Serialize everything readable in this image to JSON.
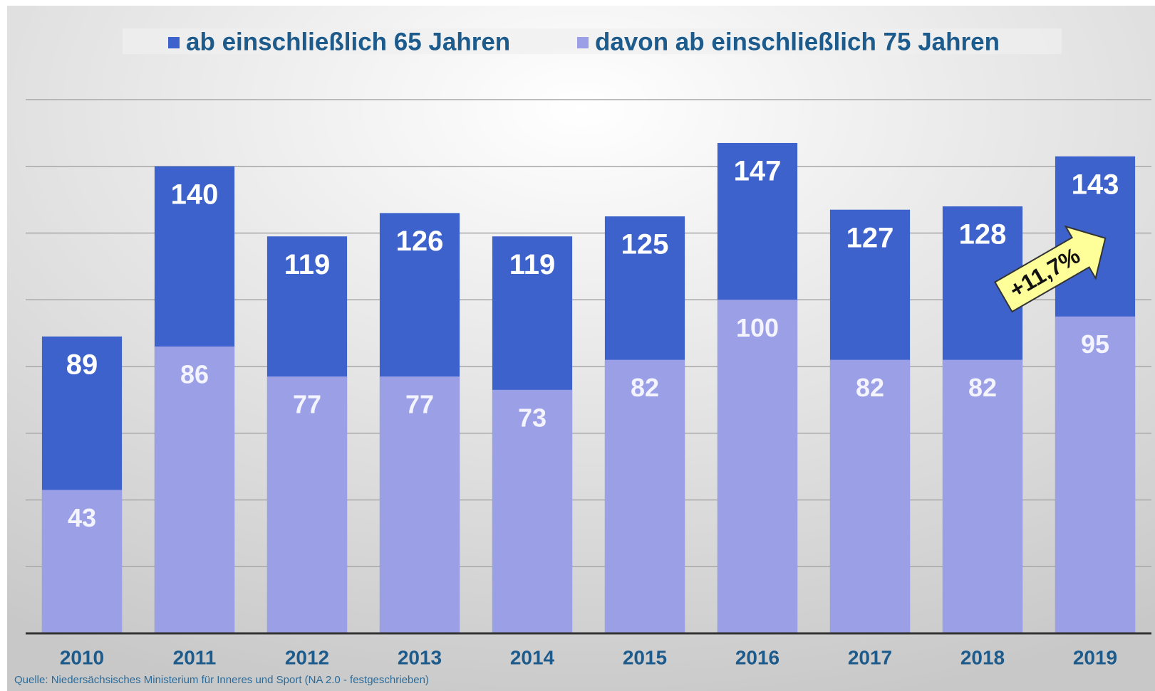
{
  "chart_data": {
    "type": "bar",
    "categories": [
      "2010",
      "2011",
      "2012",
      "2013",
      "2014",
      "2015",
      "2016",
      "2017",
      "2018",
      "2019"
    ],
    "series": [
      {
        "name": "ab einschließlich 65 Jahren",
        "color": "#3d62cc",
        "values": [
          89,
          140,
          119,
          126,
          119,
          125,
          147,
          127,
          128,
          143
        ]
      },
      {
        "name": "davon ab einschließlich 75 Jahren",
        "color": "#9b9fe6",
        "values": [
          43,
          86,
          77,
          77,
          73,
          82,
          100,
          82,
          82,
          95
        ]
      }
    ],
    "ylim": [
      0,
      160
    ],
    "yticks": [
      0,
      20,
      40,
      60,
      80,
      100,
      120,
      140,
      160
    ],
    "grid": true,
    "annotation": "+11,7%",
    "source": "Quelle: Niedersächsisches Ministerium für Inneres und Sport (NA 2.0 - festgeschrieben)"
  }
}
